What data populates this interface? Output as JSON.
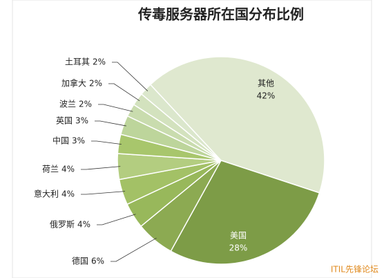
{
  "chart_data": {
    "type": "pie",
    "title": "传毒服务器所在国分布比例",
    "categories": [
      "其他",
      "美国",
      "德国",
      "俄罗斯",
      "意大利",
      "荷兰",
      "中国",
      "英国",
      "波兰",
      "加拿大",
      "土耳其"
    ],
    "values": [
      42,
      28,
      6,
      4,
      4,
      4,
      3,
      3,
      2,
      2,
      2
    ],
    "value_labels": [
      "42%",
      "28%",
      "6%",
      "4%",
      "4%",
      "4%",
      "3%",
      "3%",
      "2%",
      "2%",
      "2%"
    ],
    "colors": [
      "#dfe8cf",
      "#7d9c47",
      "#8caa52",
      "#98b85b",
      "#a3c166",
      "#b3cd80",
      "#a8c66c",
      "#bdd59b",
      "#c9dcae",
      "#d3e2be",
      "#dbe7cc"
    ]
  },
  "watermark": "ITIL先锋论坛"
}
